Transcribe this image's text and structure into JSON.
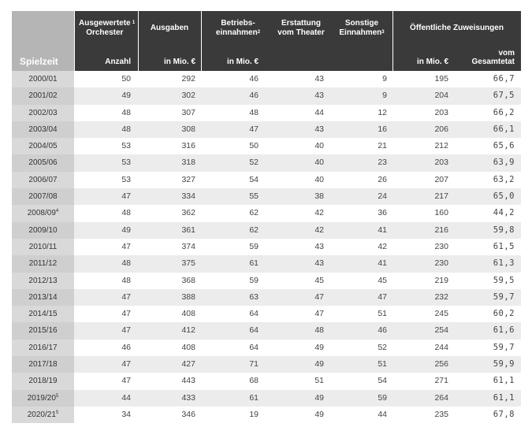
{
  "header": {
    "season": "Spielzeit",
    "orchester": "Ausgewertete Orchester",
    "orchester_fn": "1",
    "ausgaben": "Ausgaben",
    "betrieb_line1": "Betriebs-",
    "betrieb_line2": "einnahmen",
    "betrieb_fn": "2",
    "erstattung_line1": "Erstattung",
    "erstattung_line2": "vom Theater",
    "sonstige_line1": "Sonstige",
    "sonstige_line2": "Einnahmen",
    "sonstige_fn": "3",
    "zuweisungen": "Öffentliche Zuweisungen",
    "unit_anzahl": "Anzahl",
    "unit_ausgaben": "in Mio. €",
    "unit_betrieb": "in Mio. €",
    "unit_zuw": "in Mio. €",
    "unit_gesamt_1": "vom",
    "unit_gesamt_2": "Gesamtetat"
  },
  "rows": [
    {
      "season": "2000/01",
      "fn": "",
      "orch": "50",
      "ausg": "292",
      "betr": "46",
      "erst": "43",
      "sonst": "9",
      "zuw": "195",
      "pct": "66,7"
    },
    {
      "season": "2001/02",
      "fn": "",
      "orch": "49",
      "ausg": "302",
      "betr": "46",
      "erst": "43",
      "sonst": "9",
      "zuw": "204",
      "pct": "67,5"
    },
    {
      "season": "2002/03",
      "fn": "",
      "orch": "48",
      "ausg": "307",
      "betr": "48",
      "erst": "44",
      "sonst": "12",
      "zuw": "203",
      "pct": "66,2"
    },
    {
      "season": "2003/04",
      "fn": "",
      "orch": "48",
      "ausg": "308",
      "betr": "47",
      "erst": "43",
      "sonst": "16",
      "zuw": "206",
      "pct": "66,1"
    },
    {
      "season": "2004/05",
      "fn": "",
      "orch": "53",
      "ausg": "316",
      "betr": "50",
      "erst": "40",
      "sonst": "21",
      "zuw": "212",
      "pct": "65,6"
    },
    {
      "season": "2005/06",
      "fn": "",
      "orch": "53",
      "ausg": "318",
      "betr": "52",
      "erst": "40",
      "sonst": "23",
      "zuw": "203",
      "pct": "63,9"
    },
    {
      "season": "2006/07",
      "fn": "",
      "orch": "53",
      "ausg": "327",
      "betr": "54",
      "erst": "40",
      "sonst": "26",
      "zuw": "207",
      "pct": "63,2"
    },
    {
      "season": "2007/08",
      "fn": "",
      "orch": "47",
      "ausg": "334",
      "betr": "55",
      "erst": "38",
      "sonst": "24",
      "zuw": "217",
      "pct": "65,0"
    },
    {
      "season": "2008/09",
      "fn": "4",
      "orch": "48",
      "ausg": "362",
      "betr": "62",
      "erst": "42",
      "sonst": "36",
      "zuw": "160",
      "pct": "44,2"
    },
    {
      "season": "2009/10",
      "fn": "",
      "orch": "49",
      "ausg": "361",
      "betr": "62",
      "erst": "42",
      "sonst": "41",
      "zuw": "216",
      "pct": "59,8"
    },
    {
      "season": "2010/11",
      "fn": "",
      "orch": "47",
      "ausg": "374",
      "betr": "59",
      "erst": "43",
      "sonst": "42",
      "zuw": "230",
      "pct": "61,5"
    },
    {
      "season": "2011/12",
      "fn": "",
      "orch": "48",
      "ausg": "375",
      "betr": "61",
      "erst": "43",
      "sonst": "41",
      "zuw": "230",
      "pct": "61,3"
    },
    {
      "season": "2012/13",
      "fn": "",
      "orch": "48",
      "ausg": "368",
      "betr": "59",
      "erst": "45",
      "sonst": "45",
      "zuw": "219",
      "pct": "59,5"
    },
    {
      "season": "2013/14",
      "fn": "",
      "orch": "47",
      "ausg": "388",
      "betr": "63",
      "erst": "47",
      "sonst": "47",
      "zuw": "232",
      "pct": "59,7"
    },
    {
      "season": "2014/15",
      "fn": "",
      "orch": "47",
      "ausg": "408",
      "betr": "64",
      "erst": "47",
      "sonst": "51",
      "zuw": "245",
      "pct": "60,2"
    },
    {
      "season": "2015/16",
      "fn": "",
      "orch": "47",
      "ausg": "412",
      "betr": "64",
      "erst": "48",
      "sonst": "46",
      "zuw": "254",
      "pct": "61,6"
    },
    {
      "season": "2016/17",
      "fn": "",
      "orch": "46",
      "ausg": "408",
      "betr": "64",
      "erst": "49",
      "sonst": "52",
      "zuw": "244",
      "pct": "59,7"
    },
    {
      "season": "2017/18",
      "fn": "",
      "orch": "47",
      "ausg": "427",
      "betr": "71",
      "erst": "49",
      "sonst": "51",
      "zuw": "256",
      "pct": "59,9"
    },
    {
      "season": "2018/19",
      "fn": "",
      "orch": "47",
      "ausg": "443",
      "betr": "68",
      "erst": "51",
      "sonst": "54",
      "zuw": "271",
      "pct": "61,1"
    },
    {
      "season": "2019/20",
      "fn": "5",
      "orch": "44",
      "ausg": "433",
      "betr": "61",
      "erst": "49",
      "sonst": "59",
      "zuw": "264",
      "pct": "61,1"
    },
    {
      "season": "2020/21",
      "fn": "5",
      "orch": "34",
      "ausg": "346",
      "betr": "19",
      "erst": "49",
      "sonst": "44",
      "zuw": "235",
      "pct": "67,8"
    }
  ]
}
